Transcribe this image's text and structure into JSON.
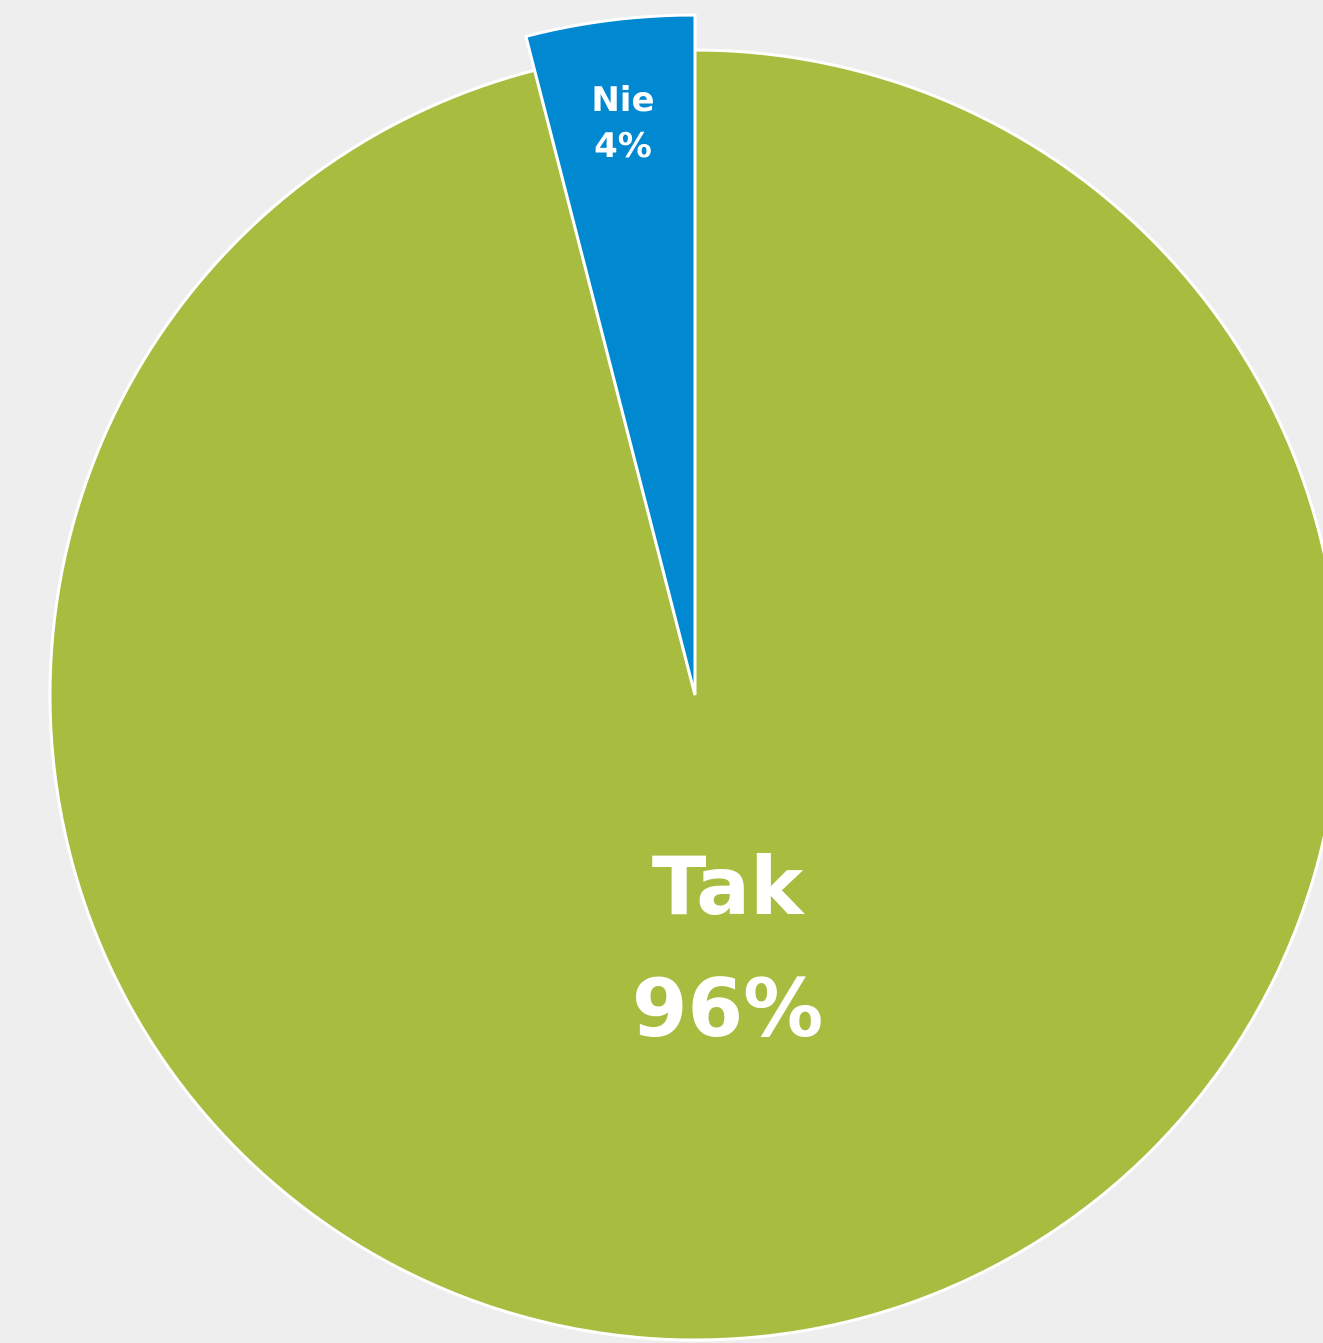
{
  "chart_data": {
    "type": "pie",
    "categories": [
      "Tak",
      "Nie"
    ],
    "values": [
      96,
      4
    ],
    "value_labels": [
      "96%",
      "4%"
    ],
    "colors": [
      "#a8bc3f",
      "#0089d1"
    ]
  }
}
